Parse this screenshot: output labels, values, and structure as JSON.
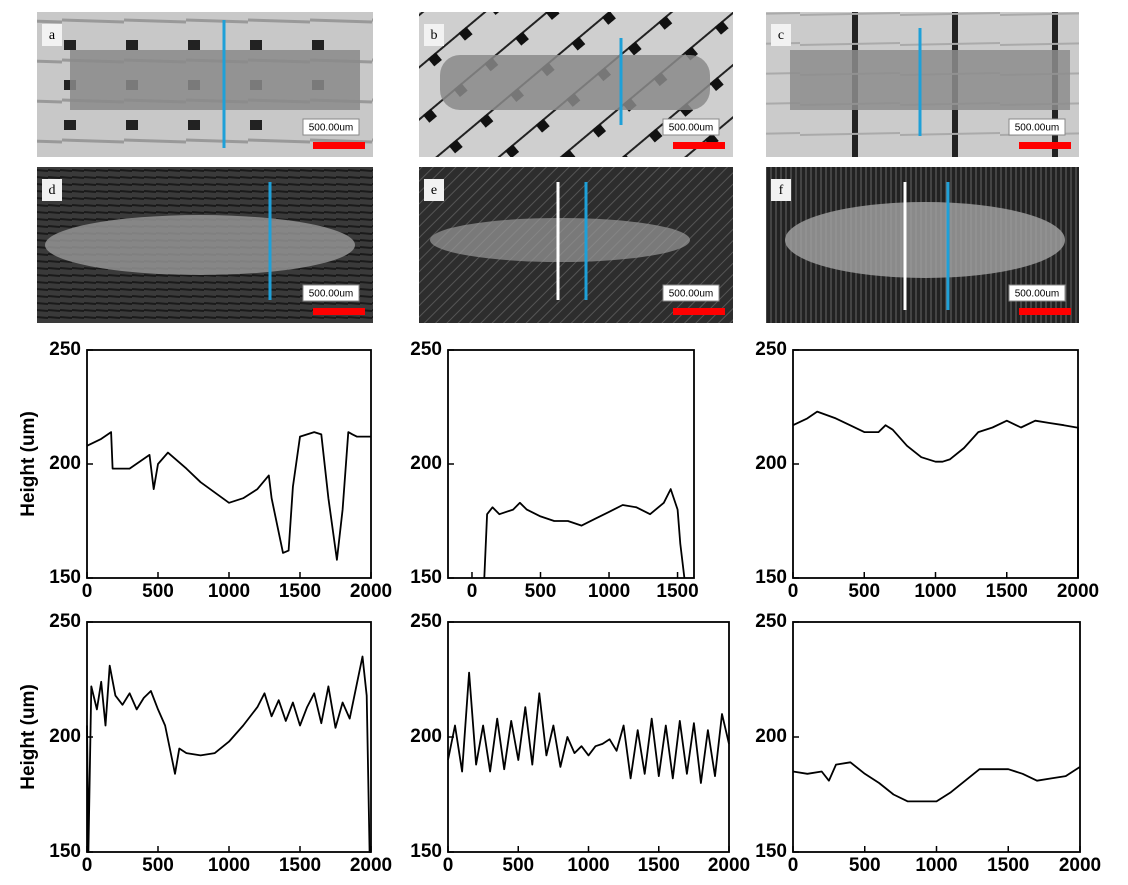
{
  "panels": [
    {
      "label": "a",
      "scale": "500.00um"
    },
    {
      "label": "b",
      "scale": "500.00um"
    },
    {
      "label": "c",
      "scale": "500.00um"
    },
    {
      "label": "d",
      "scale": "500.00um"
    },
    {
      "label": "e",
      "scale": "500.00um"
    },
    {
      "label": "f",
      "scale": "500.00um"
    }
  ],
  "chart_data": [
    {
      "type": "line",
      "y_label": "Height (um)",
      "xlim": [
        0,
        2000
      ],
      "xticks": [
        0,
        500,
        1000,
        1500,
        2000
      ],
      "ylim": [
        150,
        250
      ],
      "yticks": [
        150,
        200,
        250
      ],
      "series": [
        {
          "color": "#000000",
          "x": [
            0,
            100,
            170,
            180,
            300,
            440,
            470,
            500,
            570,
            700,
            800,
            1000,
            1100,
            1200,
            1280,
            1300,
            1380,
            1420,
            1450,
            1500,
            1600,
            1650,
            1700,
            1760,
            1800,
            1840,
            1870,
            1900,
            2000
          ],
          "values": [
            208,
            211,
            214,
            198,
            198,
            204,
            189,
            200,
            205,
            198,
            192,
            183,
            185,
            189,
            195,
            185,
            161,
            162,
            190,
            212,
            214,
            213,
            185,
            158,
            180,
            214,
            213,
            212,
            212
          ]
        }
      ]
    },
    {
      "type": "line",
      "xlim": [
        -175,
        1620
      ],
      "xticks": [
        0,
        500,
        1000,
        1500
      ],
      "ylim": [
        150,
        250
      ],
      "yticks": [
        150,
        200,
        250
      ],
      "series": [
        {
          "color": "#000000",
          "x": [
            90,
            110,
            150,
            200,
            300,
            350,
            400,
            500,
            600,
            700,
            800,
            900,
            1000,
            1100,
            1200,
            1300,
            1400,
            1450,
            1500,
            1520,
            1550
          ],
          "values": [
            150,
            178,
            181,
            178,
            180,
            183,
            180,
            177,
            175,
            175,
            173,
            176,
            179,
            182,
            181,
            178,
            183,
            189,
            180,
            165,
            150
          ]
        }
      ]
    },
    {
      "type": "line",
      "xlim": [
        0,
        2000
      ],
      "xticks": [
        0,
        500,
        1000,
        1500,
        2000
      ],
      "ylim": [
        150,
        250
      ],
      "yticks": [
        150,
        200,
        250
      ],
      "series": [
        {
          "color": "#000000",
          "x": [
            0,
            100,
            170,
            300,
            400,
            500,
            600,
            650,
            700,
            800,
            900,
            1000,
            1050,
            1100,
            1200,
            1300,
            1400,
            1500,
            1600,
            1700,
            1800,
            1900,
            1990,
            2000,
            2000
          ],
          "values": [
            217,
            220,
            223,
            220,
            217,
            214,
            214,
            217,
            215,
            208,
            203,
            201,
            201,
            202,
            207,
            214,
            216,
            219,
            216,
            219,
            218,
            217,
            216,
            216,
            150
          ]
        }
      ]
    },
    {
      "type": "line",
      "y_label": "Height (um)",
      "xlim": [
        0,
        2000
      ],
      "xticks": [
        0,
        500,
        1000,
        1500,
        2000
      ],
      "ylim": [
        150,
        250
      ],
      "yticks": [
        150,
        200,
        250
      ],
      "series": [
        {
          "color": "#000000",
          "x": [
            0,
            10,
            30,
            70,
            100,
            130,
            160,
            200,
            250,
            300,
            350,
            400,
            450,
            500,
            550,
            600,
            620,
            650,
            700,
            800,
            900,
            1000,
            1100,
            1200,
            1250,
            1300,
            1350,
            1400,
            1450,
            1500,
            1550,
            1600,
            1650,
            1700,
            1750,
            1800,
            1850,
            1900,
            1940,
            1970,
            1990,
            2000
          ],
          "values": [
            205,
            150,
            222,
            212,
            224,
            205,
            231,
            218,
            214,
            219,
            212,
            217,
            220,
            212,
            205,
            190,
            184,
            195,
            193,
            192,
            193,
            198,
            205,
            213,
            219,
            209,
            216,
            207,
            215,
            205,
            213,
            219,
            206,
            222,
            204,
            215,
            208,
            223,
            235,
            218,
            150,
            150
          ]
        }
      ]
    },
    {
      "type": "line",
      "xlim": [
        0,
        2000
      ],
      "xticks": [
        0,
        500,
        1000,
        1500,
        2000
      ],
      "ylim": [
        150,
        250
      ],
      "yticks": [
        150,
        200,
        250
      ],
      "series": [
        {
          "color": "#000000",
          "x": [
            0,
            50,
            100,
            150,
            200,
            250,
            300,
            350,
            400,
            450,
            500,
            550,
            600,
            650,
            700,
            750,
            800,
            850,
            900,
            950,
            1000,
            1050,
            1100,
            1150,
            1200,
            1250,
            1300,
            1350,
            1400,
            1450,
            1500,
            1550,
            1600,
            1650,
            1700,
            1750,
            1800,
            1850,
            1900,
            1950,
            2000
          ],
          "values": [
            190,
            205,
            185,
            228,
            188,
            205,
            185,
            208,
            186,
            207,
            190,
            213,
            188,
            219,
            192,
            205,
            187,
            200,
            193,
            196,
            192,
            196,
            197,
            199,
            194,
            205,
            182,
            203,
            184,
            208,
            183,
            205,
            182,
            207,
            184,
            206,
            180,
            203,
            183,
            210,
            197
          ]
        }
      ]
    },
    {
      "type": "line",
      "xlim": [
        0,
        2000
      ],
      "xticks": [
        0,
        500,
        1000,
        1500,
        2000
      ],
      "ylim": [
        150,
        250
      ],
      "yticks": [
        150,
        200,
        250
      ],
      "series": [
        {
          "color": "#000000",
          "x": [
            0,
            100,
            200,
            250,
            300,
            400,
            500,
            600,
            700,
            800,
            900,
            1000,
            1100,
            1200,
            1300,
            1400,
            1500,
            1600,
            1700,
            1800,
            1900,
            2000
          ],
          "values": [
            185,
            184,
            185,
            181,
            188,
            189,
            184,
            180,
            175,
            172,
            172,
            172,
            176,
            181,
            186,
            186,
            186,
            184,
            181,
            182,
            183,
            187
          ]
        }
      ]
    }
  ]
}
